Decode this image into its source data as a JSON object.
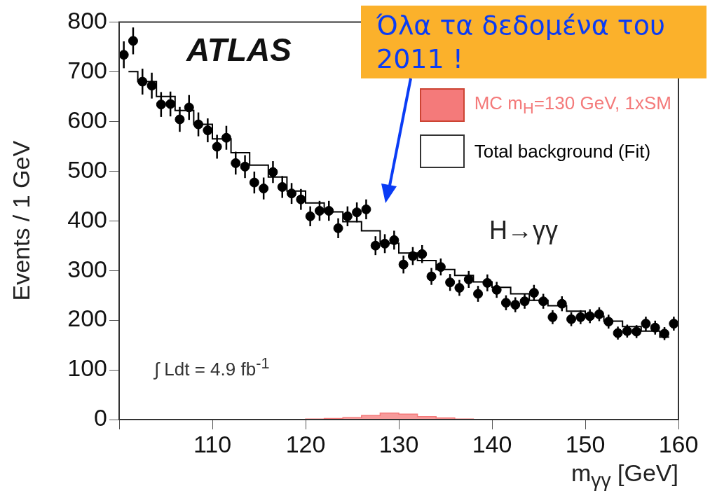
{
  "chart_data": {
    "type": "scatter",
    "xlabel": "m$_{γγ}$ [GeV]",
    "ylabel": "Events / 1 GeV",
    "xlim": [
      100,
      160
    ],
    "ylim": [
      0,
      800
    ],
    "xticks": [
      {
        "value": 100,
        "label": null
      },
      110,
      120,
      130,
      140,
      150,
      160
    ],
    "yticks": [
      0,
      100,
      200,
      300,
      400,
      500,
      600,
      700,
      800
    ],
    "grid": false,
    "legend": "top right",
    "annotations": [
      "ATLAS",
      "H→γγ",
      "∫ Ldt = 4.9 fb$^{-1}$",
      "Όλα τα δεδομένα του 2011 !"
    ],
    "series": [
      {
        "marker": "circle",
        "color": "#000000",
        "x": [
          100.5,
          101.5,
          102.5,
          103.5,
          104.5,
          105.5,
          106.5,
          107.5,
          108.5,
          109.5,
          110.5,
          111.5,
          112.5,
          113.5,
          114.5,
          115.5,
          116.5,
          117.5,
          118.5,
          119.5,
          120.5,
          121.5,
          122.5,
          123.5,
          124.5,
          125.5,
          126.5,
          127.5,
          128.5,
          129.5,
          130.5,
          131.5,
          132.5,
          133.5,
          134.5,
          135.5,
          136.5,
          137.5,
          138.5,
          139.5,
          140.5,
          141.5,
          142.5,
          143.5,
          144.5,
          145.5,
          146.5,
          147.5,
          148.5,
          149.5,
          150.5,
          151.5,
          152.5,
          153.5,
          154.5,
          155.5,
          156.5,
          157.5,
          158.5,
          159.5
        ],
        "values": [
          734,
          762,
          680,
          672,
          634,
          635,
          604,
          628,
          594,
          582,
          549,
          567,
          516,
          509,
          477,
          465,
          498,
          468,
          455,
          443,
          409,
          420,
          420,
          385,
          409,
          417,
          423,
          350,
          354,
          361,
          312,
          329,
          333,
          288,
          307,
          276,
          265,
          282,
          253,
          275,
          261,
          235,
          231,
          238,
          255,
          238,
          206,
          233,
          202,
          206,
          208,
          212,
          197,
          174,
          178,
          177,
          193,
          185,
          173,
          193
        ],
        "errors": [
          27,
          27,
          26,
          26,
          25,
          25,
          25,
          25,
          24,
          24,
          24,
          24,
          23,
          23,
          22,
          22,
          22,
          22,
          21,
          21,
          20,
          20,
          20,
          20,
          20,
          20,
          20,
          19,
          19,
          19,
          18,
          18,
          18,
          17,
          17,
          17,
          16,
          17,
          16,
          17,
          16,
          15,
          15,
          15,
          16,
          15,
          14,
          15,
          14,
          14,
          14,
          14,
          14,
          13,
          13,
          13,
          14,
          14,
          13,
          14
        ]
      },
      {
        "type": "step",
        "name": "Total background (Fit)",
        "color": "#000000",
        "x": [
          101,
          103,
          105,
          107,
          109,
          111,
          113,
          115,
          117,
          119,
          121,
          123,
          125,
          127,
          129,
          131,
          133,
          135,
          137,
          139,
          141,
          143,
          145,
          147,
          149,
          151,
          153,
          155,
          157,
          159
        ],
        "values": [
          700,
          680,
          650,
          622,
          594,
          565,
          537,
          512,
          488,
          460,
          436,
          418,
          398,
          380,
          355,
          335,
          320,
          302,
          290,
          277,
          266,
          253,
          240,
          229,
          218,
          208,
          198,
          187,
          178,
          166
        ]
      },
      {
        "type": "area",
        "name": "MC m$_{H}$=130 GeV, 1xSM",
        "color": "#f47a7a",
        "x": [
          101,
          103,
          105,
          107,
          109,
          111,
          113,
          115,
          117,
          119,
          121,
          123,
          125,
          127,
          129,
          131,
          133,
          135,
          137,
          139,
          141,
          143,
          145,
          147,
          149,
          151,
          153,
          155,
          157,
          159
        ],
        "values": [
          0,
          0,
          0,
          0,
          0,
          0,
          0,
          0,
          0,
          0,
          1,
          2,
          4,
          8,
          13,
          11,
          6,
          3,
          1,
          0,
          0,
          0,
          0,
          0,
          0,
          0,
          0,
          0,
          0,
          0
        ]
      }
    ]
  }
}
